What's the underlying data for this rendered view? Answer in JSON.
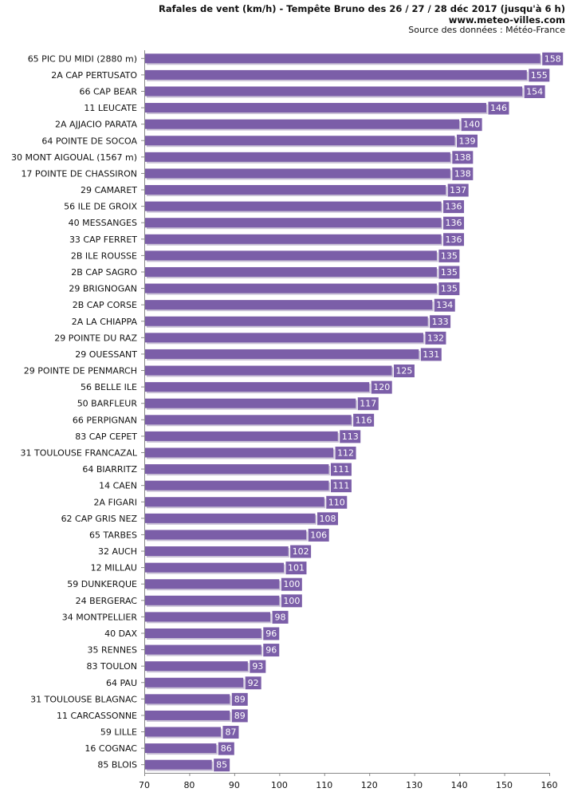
{
  "header": {
    "title": "Rafales de vent (km/h) - Tempête Bruno des 26 / 27 / 28 déc 2017 (jusqu'à 6 h)",
    "site": "www.meteo-villes.com",
    "source": "Source des données : Météo-France"
  },
  "colors": {
    "bar": "#7b5ea8",
    "bar_shadow": "#c9c1d6",
    "label_bg": "#7b5ea8",
    "axis": "#888888"
  },
  "chart_data": {
    "type": "bar",
    "orientation": "horizontal",
    "title": "Rafales de vent (km/h) - Tempête Bruno des 26 / 27 / 28 déc 2017 (jusqu'à 6 h)",
    "xlabel": "",
    "ylabel": "",
    "xlim": [
      70,
      160
    ],
    "xticks": [
      70,
      80,
      90,
      100,
      110,
      120,
      130,
      140,
      150,
      160
    ],
    "grid": false,
    "categories": [
      "65 PIC DU MIDI (2880 m)",
      "2A CAP PERTUSATO",
      "66 CAP BEAR",
      "11 LEUCATE",
      "2A AJJACIO PARATA",
      "64 POINTE DE SOCOA",
      "30 MONT AIGOUAL (1567 m)",
      "17 POINTE DE CHASSIRON",
      "29 CAMARET",
      "56 ILE DE GROIX",
      "40 MESSANGES",
      "33 CAP FERRET",
      "2B ILE ROUSSE",
      "2B CAP SAGRO",
      "29 BRIGNOGAN",
      "2B CAP CORSE",
      "2A LA CHIAPPA",
      "29 POINTE DU RAZ",
      "29 OUESSANT",
      "29 POINTE DE PENMARCH",
      "56 BELLE ILE",
      "50 BARFLEUR",
      "66 PERPIGNAN",
      "83 CAP CEPET",
      "31 TOULOUSE FRANCAZAL",
      "64 BIARRITZ",
      "14 CAEN",
      "2A FIGARI",
      "62 CAP GRIS NEZ",
      "65 TARBES",
      "32 AUCH",
      "12 MILLAU",
      "59 DUNKERQUE",
      "24 BERGERAC",
      "34 MONTPELLIER",
      "40 DAX",
      "35 RENNES",
      "83 TOULON",
      "64 PAU",
      "31 TOULOUSE BLAGNAC",
      "11  CARCASSONNE",
      "59 LILLE",
      "16 COGNAC",
      "85 BLOIS"
    ],
    "values": [
      158,
      155,
      154,
      146,
      140,
      139,
      138,
      138,
      137,
      136,
      136,
      136,
      135,
      135,
      135,
      134,
      133,
      132,
      131,
      125,
      120,
      117,
      116,
      113,
      112,
      111,
      111,
      110,
      108,
      106,
      102,
      101,
      100,
      100,
      98,
      96,
      96,
      93,
      92,
      89,
      89,
      87,
      86,
      85
    ]
  }
}
